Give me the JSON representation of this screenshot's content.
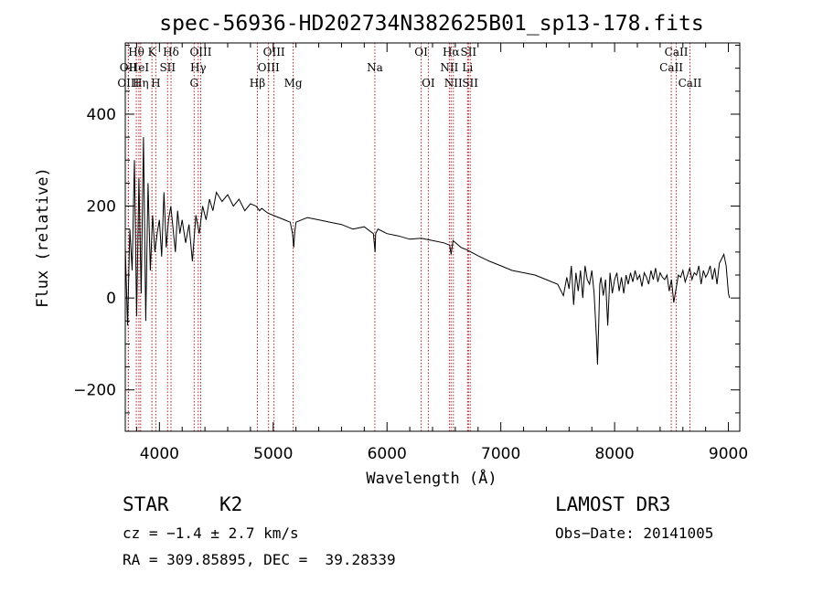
{
  "chart_data": {
    "type": "line",
    "title": "spec-56936-HD202734N382625B01_sp13-178.fits",
    "xlabel": "Wavelength (Å)",
    "ylabel": "Flux (relative)",
    "xlim": [
      3700,
      9100
    ],
    "ylim": [
      -290,
      555
    ],
    "xticks": [
      4000,
      5000,
      6000,
      7000,
      8000,
      9000
    ],
    "yticks": [
      -200,
      0,
      200,
      400
    ],
    "series": [
      {
        "name": "spectrum",
        "x": [
          3700,
          3720,
          3740,
          3760,
          3780,
          3800,
          3820,
          3840,
          3860,
          3880,
          3900,
          3920,
          3940,
          3960,
          3980,
          4000,
          4020,
          4040,
          4060,
          4080,
          4100,
          4120,
          4140,
          4160,
          4180,
          4200,
          4230,
          4260,
          4290,
          4320,
          4350,
          4380,
          4410,
          4440,
          4470,
          4500,
          4550,
          4600,
          4650,
          4700,
          4750,
          4800,
          4850,
          4880,
          4900,
          4950,
          5000,
          5050,
          5100,
          5150,
          5170,
          5180,
          5190,
          5200,
          5250,
          5300,
          5400,
          5500,
          5600,
          5700,
          5800,
          5880,
          5890,
          5895,
          5900,
          5920,
          6000,
          6100,
          6200,
          6300,
          6400,
          6500,
          6550,
          6563,
          6580,
          6650,
          6700,
          6800,
          6900,
          7000,
          7100,
          7200,
          7300,
          7400,
          7500,
          7550,
          7580,
          7600,
          7620,
          7640,
          7660,
          7680,
          7700,
          7720,
          7740,
          7760,
          7780,
          7800,
          7820,
          7840,
          7850,
          7860,
          7870,
          7880,
          7900,
          7920,
          7940,
          7960,
          7980,
          8000,
          8020,
          8040,
          8060,
          8080,
          8100,
          8120,
          8140,
          8160,
          8180,
          8200,
          8220,
          8240,
          8260,
          8280,
          8300,
          8320,
          8340,
          8360,
          8380,
          8400,
          8420,
          8440,
          8460,
          8480,
          8500,
          8520,
          8540,
          8560,
          8580,
          8600,
          8620,
          8640,
          8660,
          8680,
          8700,
          8720,
          8740,
          8760,
          8780,
          8800,
          8820,
          8840,
          8860,
          8880,
          8900,
          8920,
          8940,
          8960,
          8980,
          9000,
          9010
        ],
        "y": [
          110,
          -60,
          150,
          60,
          300,
          -40,
          260,
          10,
          350,
          -50,
          250,
          60,
          180,
          100,
          140,
          170,
          90,
          230,
          110,
          170,
          200,
          150,
          100,
          190,
          140,
          170,
          120,
          160,
          80,
          180,
          140,
          200,
          170,
          215,
          190,
          230,
          210,
          225,
          200,
          215,
          190,
          205,
          200,
          190,
          195,
          185,
          180,
          175,
          170,
          165,
          140,
          110,
          145,
          165,
          170,
          175,
          170,
          165,
          160,
          150,
          155,
          140,
          115,
          100,
          140,
          150,
          140,
          135,
          128,
          130,
          125,
          120,
          115,
          95,
          125,
          110,
          105,
          92,
          80,
          70,
          60,
          55,
          50,
          40,
          30,
          5,
          45,
          20,
          70,
          -15,
          55,
          15,
          60,
          0,
          70,
          40,
          30,
          60,
          10,
          -85,
          -145,
          -60,
          30,
          45,
          5,
          40,
          -60,
          55,
          10,
          40,
          55,
          15,
          45,
          10,
          50,
          30,
          55,
          35,
          60,
          40,
          50,
          25,
          55,
          45,
          30,
          60,
          40,
          65,
          35,
          55,
          45,
          40,
          50,
          15,
          40,
          -10,
          20,
          50,
          45,
          60,
          35,
          50,
          65,
          40,
          55,
          50,
          70,
          30,
          60,
          45,
          55,
          70,
          40,
          65,
          30,
          75,
          85,
          95,
          70,
          10,
          0
        ]
      }
    ],
    "line_markers": [
      {
        "label": "Hθ",
        "x": 3797,
        "row": 1
      },
      {
        "label": "OII",
        "x": 3727,
        "row": 2
      },
      {
        "label": "OIII",
        "x": 3727,
        "row": 3
      },
      {
        "label": "HeI",
        "x": 3820,
        "row": 2
      },
      {
        "label": "Hη",
        "x": 3835,
        "row": 3
      },
      {
        "label": "K",
        "x": 3934,
        "row": 1
      },
      {
        "label": "SII",
        "x": 4072,
        "row": 2
      },
      {
        "label": "H",
        "x": 3968,
        "row": 3
      },
      {
        "label": "Hδ",
        "x": 4102,
        "row": 1
      },
      {
        "label": "OIII",
        "x": 4363,
        "row": 1
      },
      {
        "label": "Hγ",
        "x": 4341,
        "row": 2
      },
      {
        "label": "G",
        "x": 4305,
        "row": 3
      },
      {
        "label": "OIII",
        "x": 5007,
        "row": 1
      },
      {
        "label": "OIII",
        "x": 4959,
        "row": 2
      },
      {
        "label": "Hβ",
        "x": 4861,
        "row": 3
      },
      {
        "label": "Mg",
        "x": 5175,
        "row": 3
      },
      {
        "label": "Na",
        "x": 5893,
        "row": 2
      },
      {
        "label": "OI",
        "x": 6300,
        "row": 1
      },
      {
        "label": "OI",
        "x": 6363,
        "row": 3
      },
      {
        "label": "Hα",
        "x": 6563,
        "row": 1
      },
      {
        "label": "NII",
        "x": 6548,
        "row": 2
      },
      {
        "label": "NII",
        "x": 6583,
        "row": 3
      },
      {
        "label": "SII",
        "x": 6716,
        "row": 1
      },
      {
        "label": "Li",
        "x": 6708,
        "row": 2
      },
      {
        "label": "SII",
        "x": 6731,
        "row": 3
      },
      {
        "label": "CaII",
        "x": 8542,
        "row": 1
      },
      {
        "label": "CaII",
        "x": 8498,
        "row": 2
      },
      {
        "label": "CaII",
        "x": 8662,
        "row": 3
      }
    ],
    "marker_color": "#b22222"
  },
  "info": {
    "object_class": "STAR",
    "subclass": "K2",
    "survey": "LAMOST DR3",
    "redshift": "cz = −1.4 ± 2.7 km/s",
    "obs_date": "Obs−Date: 20141005",
    "coords": "RA = 309.85895, DEC =  39.28339"
  }
}
